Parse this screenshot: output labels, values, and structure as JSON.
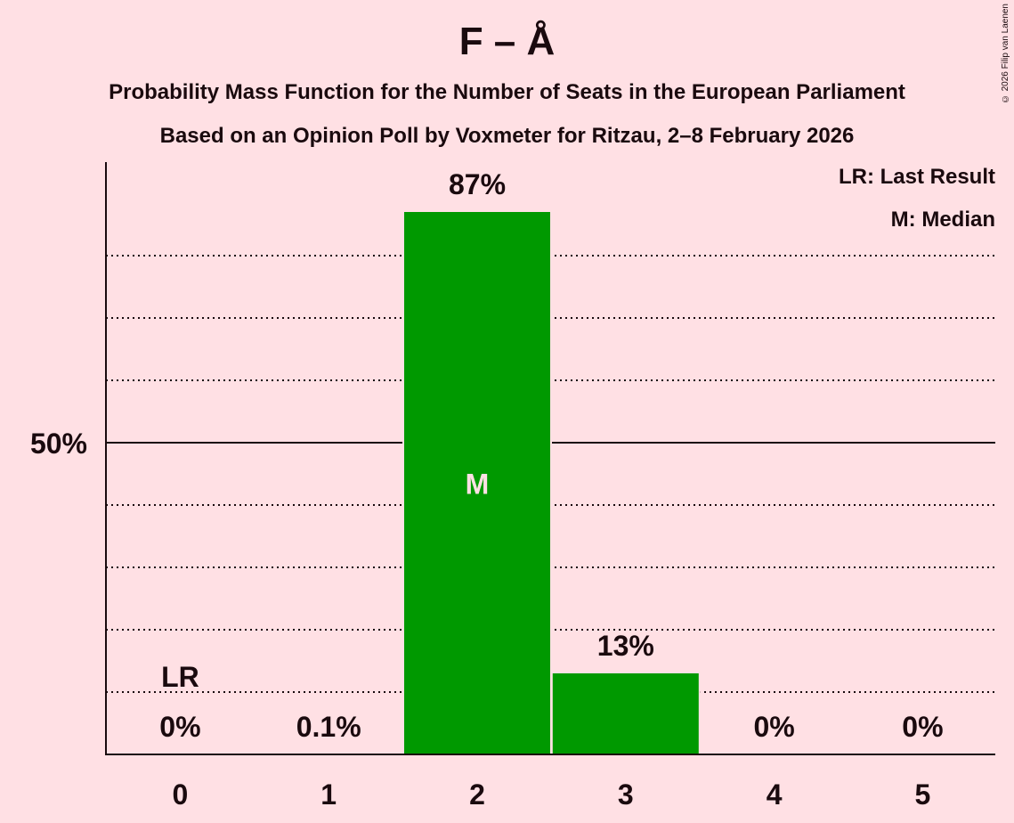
{
  "header": {
    "title": "F – Å",
    "subtitle_line1": "Probability Mass Function for the Number of Seats in the European Parliament",
    "subtitle_line2": "Based on an Opinion Poll by Voxmeter for Ritzau, 2–8 February 2026"
  },
  "copyright": "© 2026 Filip van Laenen",
  "legend": {
    "last_result": "LR: Last Result",
    "median": "M: Median"
  },
  "colors": {
    "background": "#ffe0e4",
    "bar": "#009900",
    "text": "#1a0a0e"
  },
  "chart_data": {
    "type": "bar",
    "title": "F – Å",
    "subtitle": "Probability Mass Function for the Number of Seats in the European Parliament / Based on an Opinion Poll by Voxmeter for Ritzau, 2–8 February 2026",
    "xlabel": "",
    "ylabel": "",
    "categories": [
      "0",
      "1",
      "2",
      "3",
      "4",
      "5"
    ],
    "values": [
      0,
      0.1,
      87,
      13,
      0,
      0
    ],
    "value_labels": [
      "0%",
      "0.1%",
      "87%",
      "13%",
      "0%",
      "0%"
    ],
    "ylim": [
      0,
      100
    ],
    "y_ticks_labeled": [
      {
        "value": 50,
        "label": "50%"
      }
    ],
    "gridlines": [
      10,
      20,
      30,
      40,
      50,
      60,
      70,
      80
    ],
    "annotations": [
      {
        "category": "0",
        "text": "LR",
        "meaning": "Last Result"
      },
      {
        "category": "2",
        "text": "M",
        "meaning": "Median"
      }
    ],
    "legend_position": "top-right"
  }
}
